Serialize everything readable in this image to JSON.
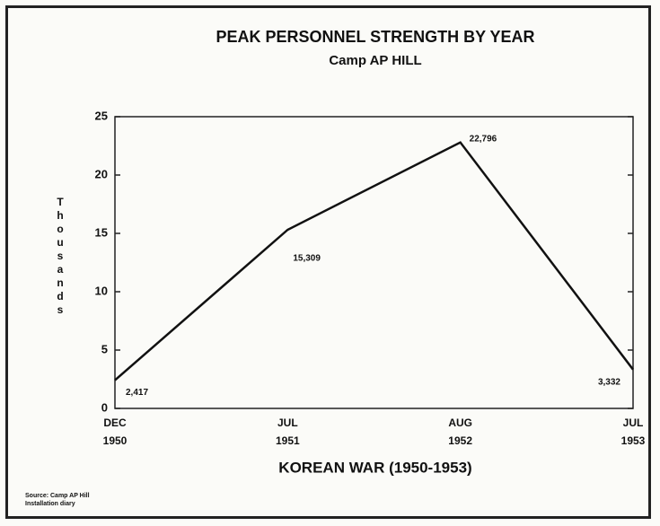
{
  "chart_data": {
    "type": "line",
    "title": "PEAK PERSONNEL STRENGTH BY YEAR",
    "subtitle": "Camp AP HILL",
    "xlabel": "KOREAN WAR (1950-1953)",
    "ylabel": "Thousands",
    "source": "Source: Camp AP Hill\nInstallation diary",
    "categories": [
      "DEC\n1950",
      "JUL\n1951",
      "AUG\n1952",
      "JUL\n1953"
    ],
    "values": [
      2.417,
      15.309,
      22.796,
      3.332
    ],
    "value_labels": [
      "2,417",
      "15,309",
      "22,796",
      "3,332"
    ],
    "color": "#111111",
    "ylim": [
      0,
      25
    ],
    "yticks": [
      0,
      5,
      10,
      15,
      20,
      25
    ]
  }
}
